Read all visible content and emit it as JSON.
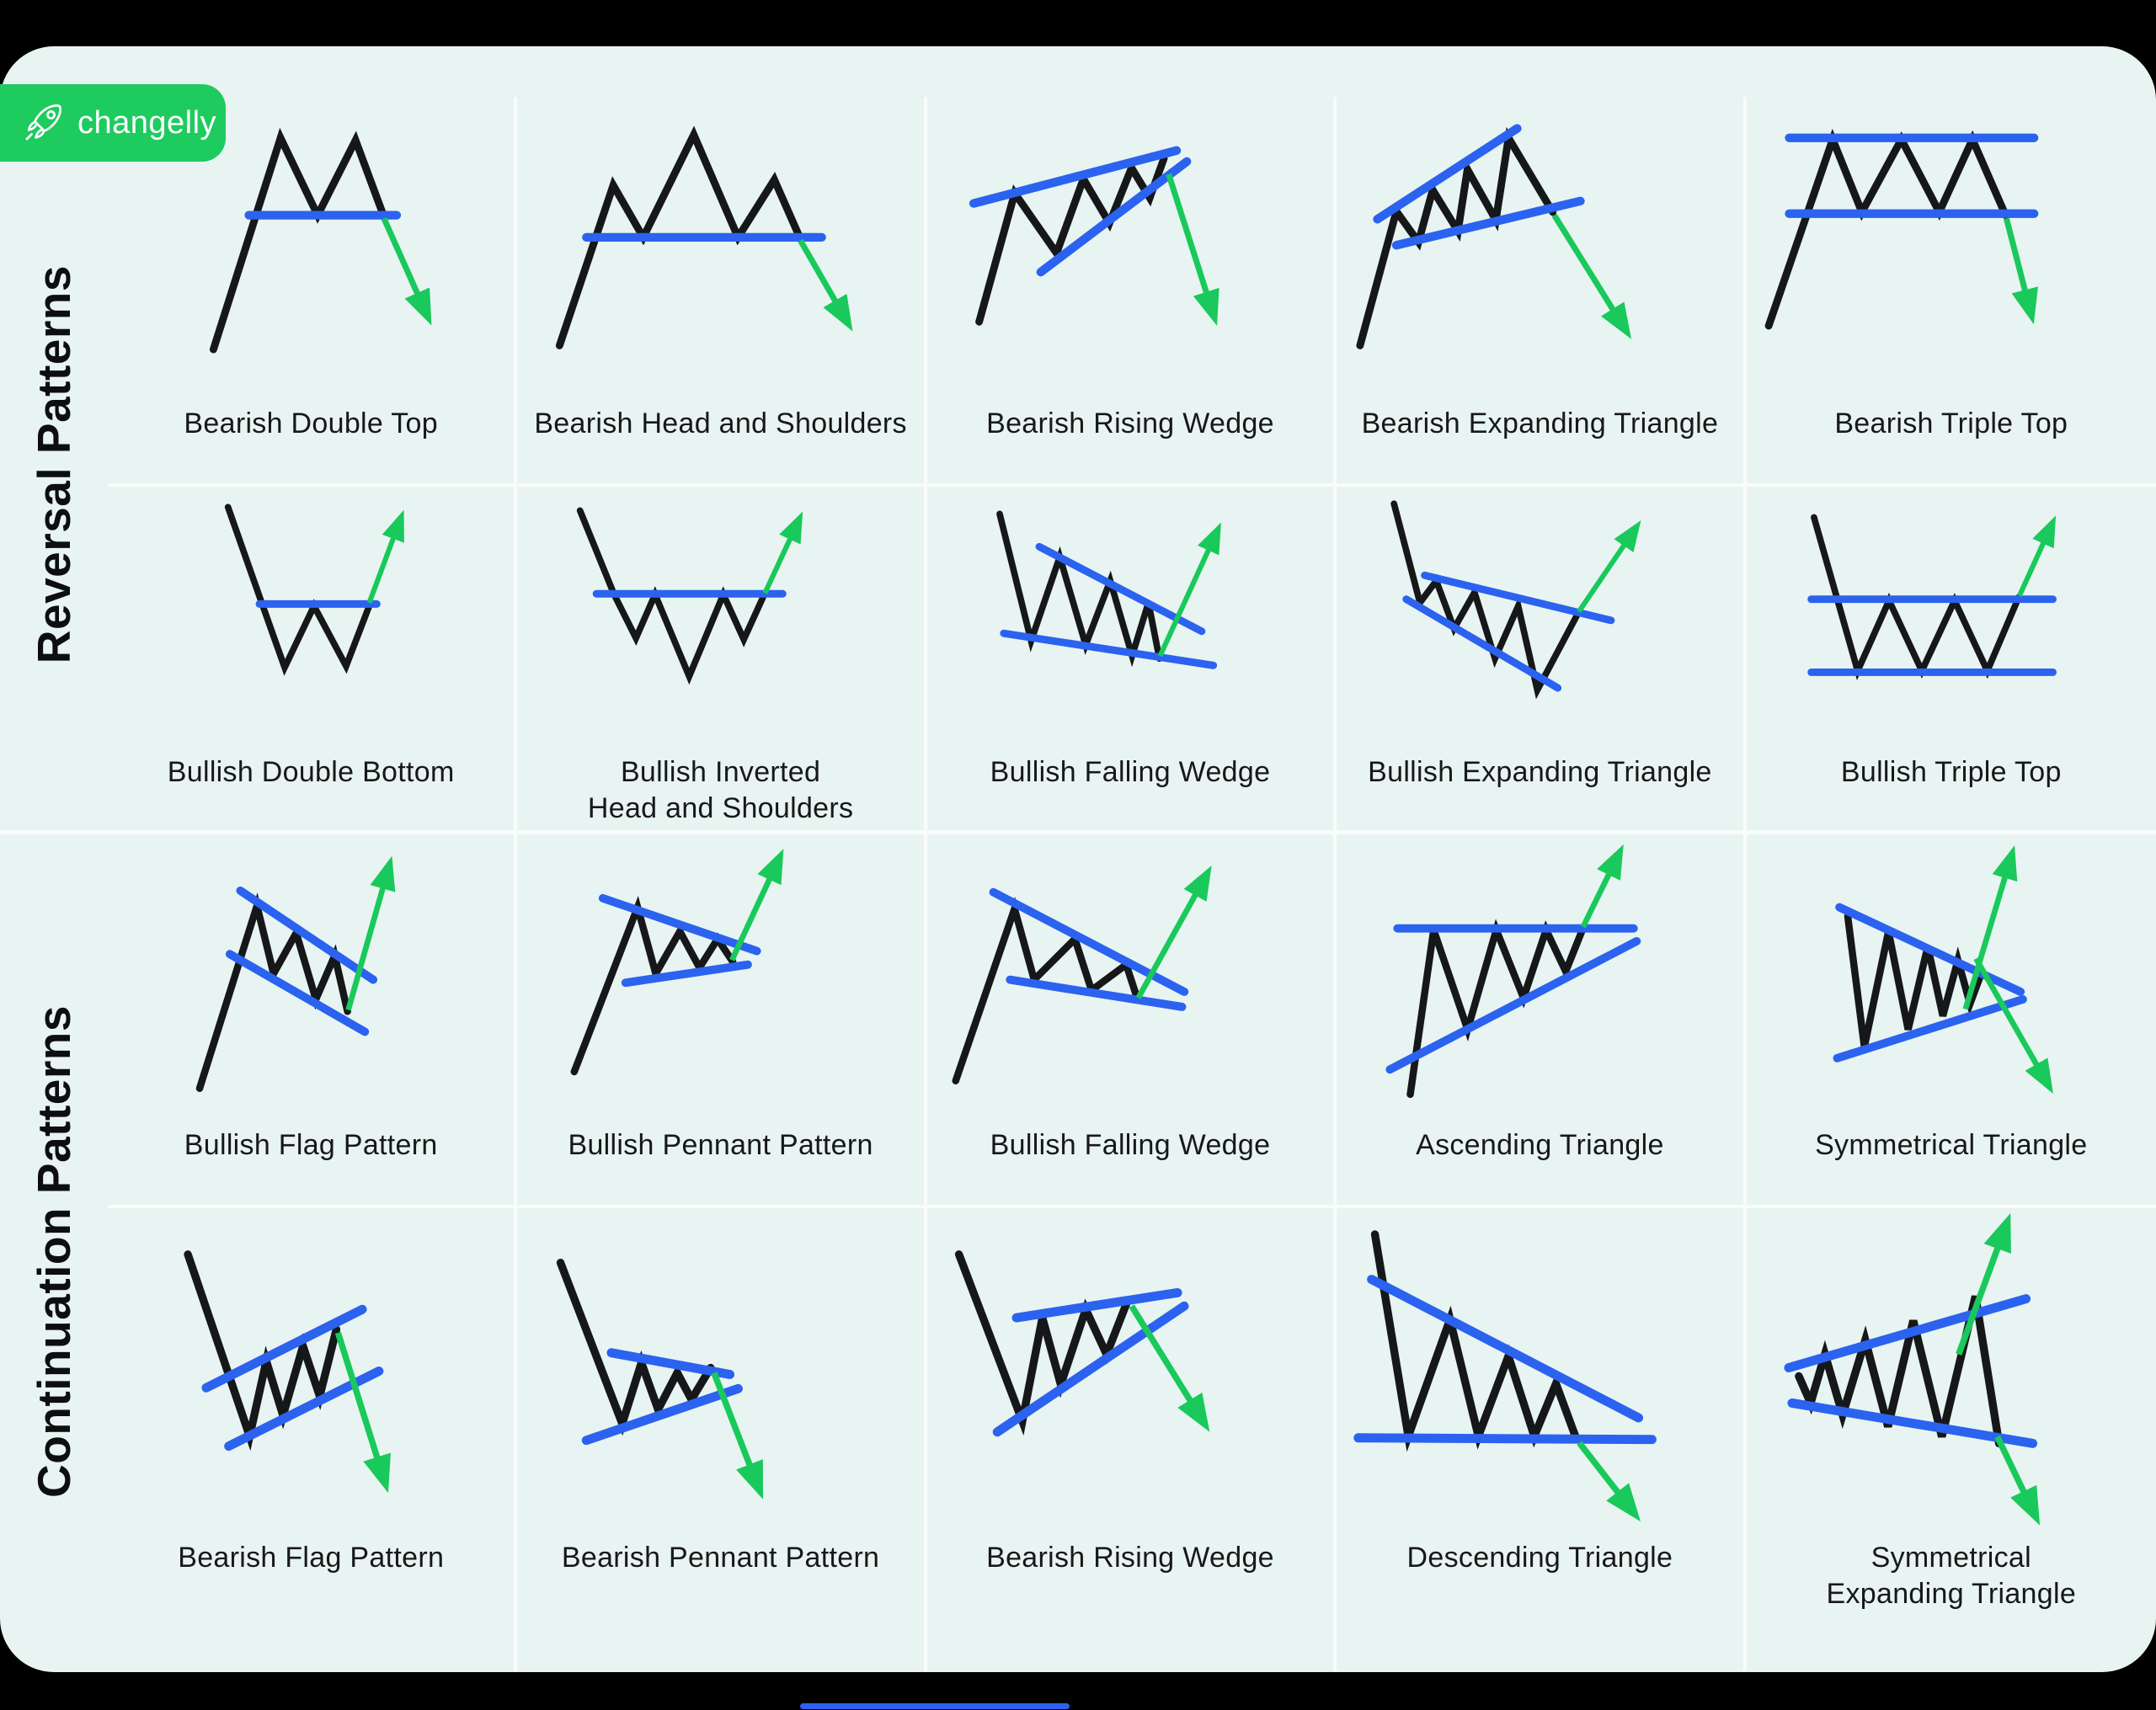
{
  "logo": {
    "brand": "changelly",
    "icon": "rocket-icon"
  },
  "sections": [
    {
      "id": "reversal",
      "label": "Reversal Patterns"
    },
    {
      "id": "continuation",
      "label": "Continuation Patterns"
    }
  ],
  "colors": {
    "canvas": "#000000",
    "background": "#e8f4f1",
    "brand_green": "#1ecb5f",
    "line_black": "#161719",
    "line_blue": "#2b63f0",
    "arrow_green": "#19c95b",
    "divider": "#f8fcfb",
    "label_text": "#17181a"
  },
  "grid": {
    "rows": [
      {
        "section": "reversal",
        "cells": [
          {
            "pattern": "bearish-double-top",
            "label": "Bearish Double Top"
          },
          {
            "pattern": "bearish-head-and-shoulders",
            "label": "Bearish Head and Shoulders"
          },
          {
            "pattern": "bearish-rising-wedge",
            "label": "Bearish Rising Wedge"
          },
          {
            "pattern": "bearish-expanding-triangle",
            "label": "Bearish Expanding Triangle"
          },
          {
            "pattern": "bearish-triple-top",
            "label": "Bearish Triple Top"
          }
        ]
      },
      {
        "section": "reversal",
        "cells": [
          {
            "pattern": "bullish-double-bottom",
            "label": "Bullish Double Bottom"
          },
          {
            "pattern": "bullish-inverted-head-and-shoulders",
            "label": "Bullish Inverted\nHead and Shoulders"
          },
          {
            "pattern": "bullish-falling-wedge",
            "label": "Bullish Falling Wedge"
          },
          {
            "pattern": "bullish-expanding-triangle",
            "label": "Bullish Expanding Triangle"
          },
          {
            "pattern": "bullish-triple-top",
            "label": "Bullish Triple Top"
          }
        ]
      },
      {
        "section": "continuation",
        "cells": [
          {
            "pattern": "bullish-flag",
            "label": "Bullish Flag Pattern"
          },
          {
            "pattern": "bullish-pennant",
            "label": "Bullish Pennant Pattern"
          },
          {
            "pattern": "bullish-falling-wedge-2",
            "label": "Bullish Falling Wedge"
          },
          {
            "pattern": "ascending-triangle",
            "label": "Ascending Triangle"
          },
          {
            "pattern": "symmetrical-triangle",
            "label": "Symmetrical Triangle"
          }
        ]
      },
      {
        "section": "continuation",
        "cells": [
          {
            "pattern": "bearish-flag",
            "label": "Bearish Flag Pattern"
          },
          {
            "pattern": "bearish-pennant",
            "label": "Bearish Pennant Pattern"
          },
          {
            "pattern": "bearish-rising-wedge-2",
            "label": "Bearish Rising Wedge"
          },
          {
            "pattern": "descending-triangle",
            "label": "Descending Triangle"
          },
          {
            "pattern": "symmetrical-expanding-triangle",
            "label": "Symmetrical\nExpanding Triangle"
          }
        ]
      }
    ]
  }
}
